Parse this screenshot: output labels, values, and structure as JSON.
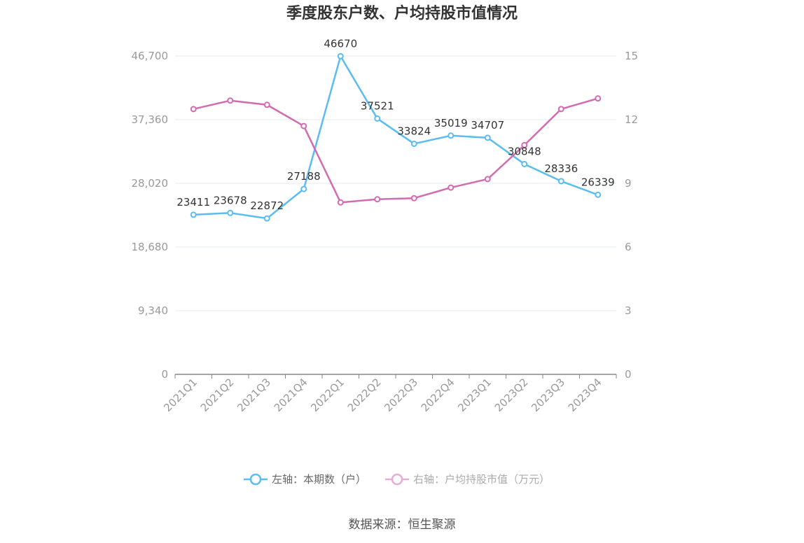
{
  "chart_data": {
    "type": "line",
    "title": "季度股东户数、户均持股市值情况",
    "categories": [
      "2021Q1",
      "2021Q2",
      "2021Q3",
      "2021Q4",
      "2022Q1",
      "2022Q2",
      "2022Q3",
      "2022Q4",
      "2023Q1",
      "2023Q2",
      "2023Q3",
      "2023Q4"
    ],
    "left_axis": {
      "ticks": [
        "0",
        "9,340",
        "18,680",
        "28,020",
        "37,360",
        "46,700"
      ],
      "min": 0,
      "max": 46700
    },
    "right_axis": {
      "ticks": [
        "0",
        "3",
        "6",
        "9",
        "12",
        "15"
      ],
      "min": 0,
      "max": 15
    },
    "grid": true,
    "legend_position": "bottom",
    "series": [
      {
        "name": "左轴：本期数（户）",
        "axis": "left",
        "color": "#5bbcf0",
        "values": [
          23411,
          23678,
          22872,
          27188,
          46670,
          37521,
          33824,
          35019,
          34707,
          30848,
          28336,
          26339
        ],
        "labels": [
          "23411",
          "23678",
          "22872",
          "27188",
          "46670",
          "37521",
          "33824",
          "35019",
          "34707",
          "30848",
          "28336",
          "26339"
        ]
      },
      {
        "name": "右轴：户均持股市值（万元）",
        "axis": "right",
        "color": "#d36bb0",
        "values": [
          12.5,
          12.9,
          12.7,
          11.7,
          8.1,
          8.25,
          8.3,
          8.8,
          9.2,
          10.8,
          12.5,
          13.0
        ]
      }
    ]
  },
  "source": "数据来源：恒生聚源"
}
